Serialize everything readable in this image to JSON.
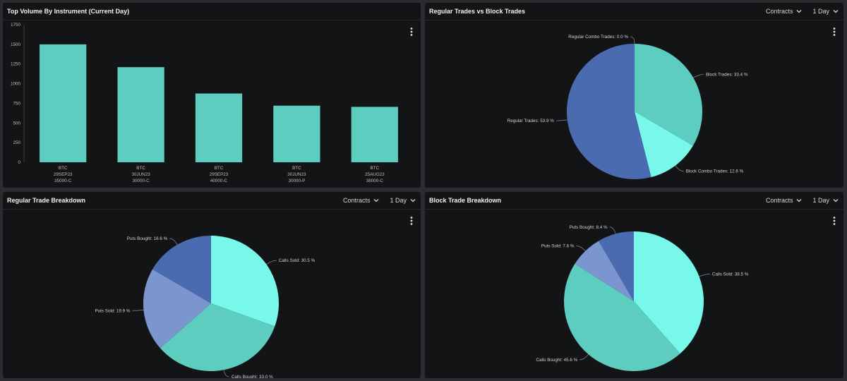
{
  "panels": {
    "top_volume": {
      "title": "Top Volume By Instrument (Current Day)"
    },
    "reg_vs_block": {
      "title": "Regular Trades vs Block Trades",
      "unit": "Contracts",
      "period": "1 Day"
    },
    "regular_breakdown": {
      "title": "Regular Trade Breakdown",
      "unit": "Contracts",
      "period": "1 Day"
    },
    "block_breakdown": {
      "title": "Block Trade Breakdown",
      "unit": "Contracts",
      "period": "1 Day"
    }
  },
  "icons": {
    "dropdown": "chevron-down-icon",
    "menu": "more-vertical-icon"
  },
  "colors": {
    "teal": "#5ccdbf",
    "aqua": "#78f7eb",
    "blue": "#4a6bb0",
    "lightblue": "#7b96cf"
  },
  "chart_data": [
    {
      "type": "bar",
      "title": "Top Volume By Instrument (Current Day)",
      "categories": [
        [
          "BTC",
          "29SEP23",
          "35000-C"
        ],
        [
          "BTC",
          "30JUN23",
          "30000-C"
        ],
        [
          "BTC",
          "29SEP23",
          "40000-C"
        ],
        [
          "BTC",
          "30JUN23",
          "30000-P"
        ],
        [
          "BTC",
          "25AUG23",
          "38000-C"
        ]
      ],
      "values": [
        1500,
        1210,
        875,
        720,
        705
      ],
      "ylim": [
        0,
        1750
      ],
      "yticks": [
        0,
        250,
        500,
        750,
        1000,
        1250,
        1500,
        1750
      ],
      "grid": false,
      "color": "#5ccdbf"
    },
    {
      "type": "pie",
      "title": "Regular Trades vs Block Trades",
      "slices": [
        {
          "label": "Block Trades: 33.4 %",
          "value": 33.4,
          "color": "#5ccdbf"
        },
        {
          "label": "Block Combo Trades: 12.6 %",
          "value": 12.6,
          "color": "#78f7eb"
        },
        {
          "label": "Regular Trades: 53.9 %",
          "value": 53.9,
          "color": "#4a6bb0"
        },
        {
          "label": "Regular Combo Trades: 0.0 %",
          "value": 0.0,
          "color": "#7b96cf"
        }
      ]
    },
    {
      "type": "pie",
      "title": "Regular Trade Breakdown",
      "slices": [
        {
          "label": "Calls Sold: 30.5 %",
          "value": 30.5,
          "color": "#78f7eb"
        },
        {
          "label": "Calls Bought: 33.0 %",
          "value": 33.0,
          "color": "#5ccdbf"
        },
        {
          "label": "Puts Sold: 19.9 %",
          "value": 19.9,
          "color": "#7b96cf"
        },
        {
          "label": "Puts Bought: 16.6 %",
          "value": 16.6,
          "color": "#4a6bb0"
        }
      ]
    },
    {
      "type": "pie",
      "title": "Block Trade Breakdown",
      "slices": [
        {
          "label": "Calls Sold: 38.5 %",
          "value": 38.5,
          "color": "#78f7eb"
        },
        {
          "label": "Calls Bought: 45.6 %",
          "value": 45.6,
          "color": "#5ccdbf"
        },
        {
          "label": "Puts Sold: 7.6 %",
          "value": 7.6,
          "color": "#7b96cf"
        },
        {
          "label": "Puts Bought: 8.4 %",
          "value": 8.4,
          "color": "#4a6bb0"
        }
      ]
    }
  ]
}
